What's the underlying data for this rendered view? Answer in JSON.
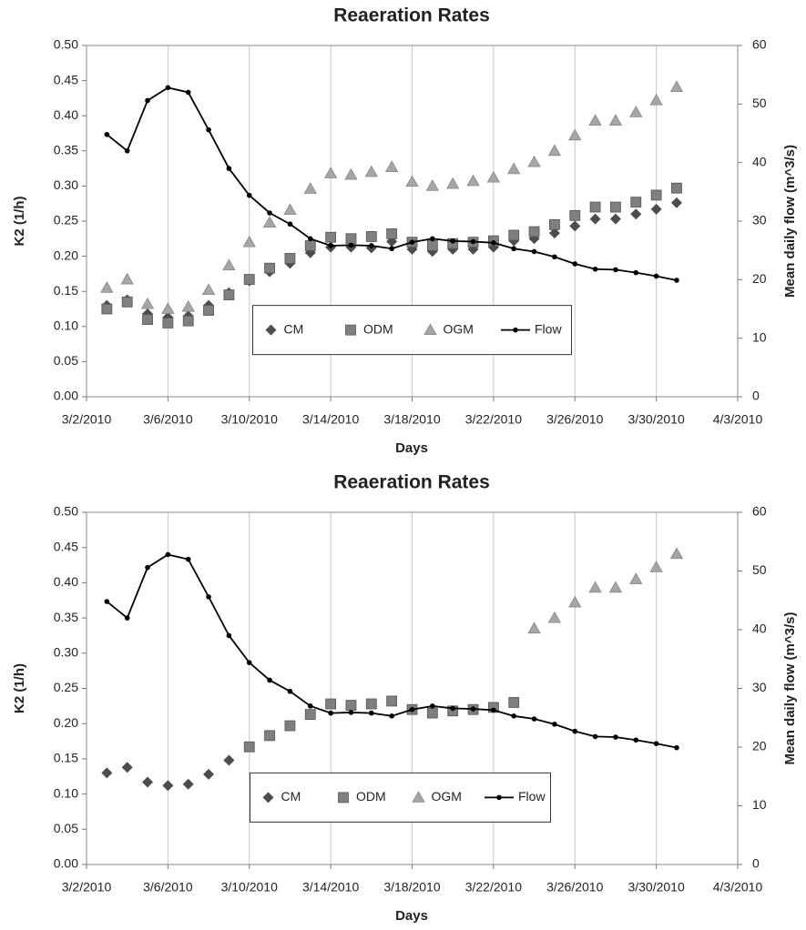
{
  "chart_data": [
    {
      "type": "scatter",
      "title": "Reaeration Rates",
      "x_label": "Days",
      "y_label": "K2 (1/h)",
      "y2_label": "Mean daily flow (m^3/s)",
      "xlim": [
        "3/2/2010",
        "4/3/2010"
      ],
      "xticks": [
        "3/2/2010",
        "3/6/2010",
        "3/10/2010",
        "3/14/2010",
        "3/18/2010",
        "3/22/2010",
        "3/26/2010",
        "3/30/2010",
        "4/3/2010"
      ],
      "ylim": [
        0,
        0.5
      ],
      "yticks": [
        {
          "value": 0,
          "label": "0.00"
        },
        {
          "value": 0.05,
          "label": "0.05"
        },
        {
          "value": 0.1,
          "label": "0.10"
        },
        {
          "value": 0.15,
          "label": "0.15"
        },
        {
          "value": 0.2,
          "label": "0.20"
        },
        {
          "value": 0.25,
          "label": "0.25"
        },
        {
          "value": 0.3,
          "label": "0.30"
        },
        {
          "value": 0.35,
          "label": "0.35"
        },
        {
          "value": 0.4,
          "label": "0.40"
        },
        {
          "value": 0.45,
          "label": "0.45"
        },
        {
          "value": 0.5,
          "label": "0.50"
        }
      ],
      "y2lim": [
        0,
        60
      ],
      "y2ticks": [
        0,
        10,
        20,
        30,
        40,
        50,
        60
      ],
      "grid": "x",
      "legend": "center",
      "x": [
        "3/3/2010",
        "3/4/2010",
        "3/5/2010",
        "3/6/2010",
        "3/7/2010",
        "3/8/2010",
        "3/9/2010",
        "3/10/2010",
        "3/11/2010",
        "3/12/2010",
        "3/13/2010",
        "3/14/2010",
        "3/15/2010",
        "3/16/2010",
        "3/17/2010",
        "3/18/2010",
        "3/19/2010",
        "3/20/2010",
        "3/21/2010",
        "3/22/2010",
        "3/23/2010",
        "3/24/2010",
        "3/25/2010",
        "3/26/2010",
        "3/27/2010",
        "3/28/2010",
        "3/29/2010",
        "3/30/2010",
        "3/31/2010"
      ],
      "series": [
        {
          "name": "CM",
          "color": "#4d4d4d",
          "marker": "diamond",
          "values": [
            0.13,
            0.138,
            0.118,
            0.113,
            0.115,
            0.13,
            0.148,
            0.165,
            0.178,
            0.19,
            0.205,
            0.213,
            0.213,
            0.212,
            0.221,
            0.21,
            0.207,
            0.21,
            0.21,
            0.213,
            0.222,
            0.225,
            0.233,
            0.243,
            0.253,
            0.253,
            0.26,
            0.267,
            0.276
          ]
        },
        {
          "name": "ODM",
          "color": "#7f7f7f",
          "marker": "square",
          "values": [
            0.125,
            0.135,
            0.11,
            0.105,
            0.108,
            0.123,
            0.145,
            0.167,
            0.183,
            0.197,
            0.215,
            0.227,
            0.225,
            0.228,
            0.232,
            0.22,
            0.215,
            0.218,
            0.22,
            0.222,
            0.23,
            0.235,
            0.245,
            0.258,
            0.27,
            0.27,
            0.277,
            0.287,
            0.297
          ]
        },
        {
          "name": "OGM",
          "color": "#a6a6a6",
          "marker": "triangle",
          "values": [
            0.155,
            0.167,
            0.132,
            0.125,
            0.128,
            0.152,
            0.187,
            0.22,
            0.248,
            0.266,
            0.296,
            0.318,
            0.316,
            0.32,
            0.327,
            0.306,
            0.3,
            0.303,
            0.307,
            0.312,
            0.324,
            0.334,
            0.35,
            0.372,
            0.393,
            0.393,
            0.405,
            0.422,
            0.441
          ]
        },
        {
          "name": "Flow",
          "color": "#000000",
          "marker": "circle",
          "line": true,
          "axis": "y2",
          "values": [
            44.8,
            42,
            50.6,
            52.8,
            52,
            45.6,
            39,
            34.4,
            31.4,
            29.5,
            27,
            25.8,
            25.9,
            25.8,
            25.3,
            26.4,
            27,
            26.6,
            26.5,
            26.3,
            25.3,
            24.8,
            23.9,
            22.7,
            21.8,
            21.7,
            21.2,
            20.6,
            19.9
          ]
        }
      ]
    },
    {
      "type": "scatter",
      "title": "Reaeration Rates",
      "x_label": "Days",
      "y_label": "K2 (1/h)",
      "y2_label": "Mean daily flow (m^3/s)",
      "xlim": [
        "3/2/2010",
        "4/3/2010"
      ],
      "xticks": [
        "3/2/2010",
        "3/6/2010",
        "3/10/2010",
        "3/14/2010",
        "3/18/2010",
        "3/22/2010",
        "3/26/2010",
        "3/30/2010",
        "4/3/2010"
      ],
      "ylim": [
        0,
        0.5
      ],
      "yticks": [
        {
          "value": 0,
          "label": "0.00"
        },
        {
          "value": 0.05,
          "label": "0.05"
        },
        {
          "value": 0.1,
          "label": "0.10"
        },
        {
          "value": 0.15,
          "label": "0.15"
        },
        {
          "value": 0.2,
          "label": "0.20"
        },
        {
          "value": 0.25,
          "label": "0.25"
        },
        {
          "value": 0.3,
          "label": "0.30"
        },
        {
          "value": 0.35,
          "label": "0.35"
        },
        {
          "value": 0.4,
          "label": "0.40"
        },
        {
          "value": 0.45,
          "label": "0.45"
        },
        {
          "value": 0.5,
          "label": "0.50"
        }
      ],
      "y2lim": [
        0,
        60
      ],
      "y2ticks": [
        0,
        10,
        20,
        30,
        40,
        50,
        60
      ],
      "grid": "x",
      "legend": "center",
      "x": [
        "3/3/2010",
        "3/4/2010",
        "3/5/2010",
        "3/6/2010",
        "3/7/2010",
        "3/8/2010",
        "3/9/2010",
        "3/10/2010",
        "3/11/2010",
        "3/12/2010",
        "3/13/2010",
        "3/14/2010",
        "3/15/2010",
        "3/16/2010",
        "3/17/2010",
        "3/18/2010",
        "3/19/2010",
        "3/20/2010",
        "3/21/2010",
        "3/22/2010",
        "3/23/2010",
        "3/24/2010",
        "3/25/2010",
        "3/26/2010",
        "3/27/2010",
        "3/28/2010",
        "3/29/2010",
        "3/30/2010",
        "3/31/2010"
      ],
      "series": [
        {
          "name": "CM",
          "color": "#4d4d4d",
          "marker": "diamond",
          "values": [
            0.13,
            0.138,
            0.117,
            0.112,
            0.114,
            0.128,
            0.148,
            null,
            null,
            null,
            null,
            null,
            null,
            null,
            null,
            null,
            null,
            null,
            null,
            null,
            null,
            null,
            null,
            null,
            null,
            null,
            null,
            null,
            null
          ]
        },
        {
          "name": "ODM",
          "color": "#7f7f7f",
          "marker": "square",
          "values": [
            null,
            null,
            null,
            null,
            null,
            null,
            null,
            0.167,
            0.183,
            0.197,
            0.213,
            0.228,
            0.226,
            0.228,
            0.232,
            0.22,
            0.215,
            0.218,
            0.22,
            0.223,
            0.23,
            null,
            null,
            null,
            null,
            null,
            null,
            null,
            null
          ]
        },
        {
          "name": "OGM",
          "color": "#a6a6a6",
          "marker": "triangle",
          "values": [
            null,
            null,
            null,
            null,
            null,
            null,
            null,
            null,
            null,
            null,
            null,
            null,
            null,
            null,
            null,
            null,
            null,
            null,
            null,
            null,
            null,
            0.335,
            0.35,
            0.372,
            0.393,
            0.393,
            0.405,
            0.422,
            0.441
          ]
        },
        {
          "name": "Flow",
          "color": "#000000",
          "marker": "circle",
          "line": true,
          "axis": "y2",
          "values": [
            44.8,
            42,
            50.6,
            52.8,
            52,
            45.6,
            39,
            34.4,
            31.4,
            29.5,
            27,
            25.8,
            25.9,
            25.8,
            25.3,
            26.4,
            27,
            26.6,
            26.5,
            26.3,
            25.3,
            24.8,
            23.9,
            22.7,
            21.8,
            21.7,
            21.2,
            20.6,
            19.9
          ]
        }
      ]
    }
  ]
}
